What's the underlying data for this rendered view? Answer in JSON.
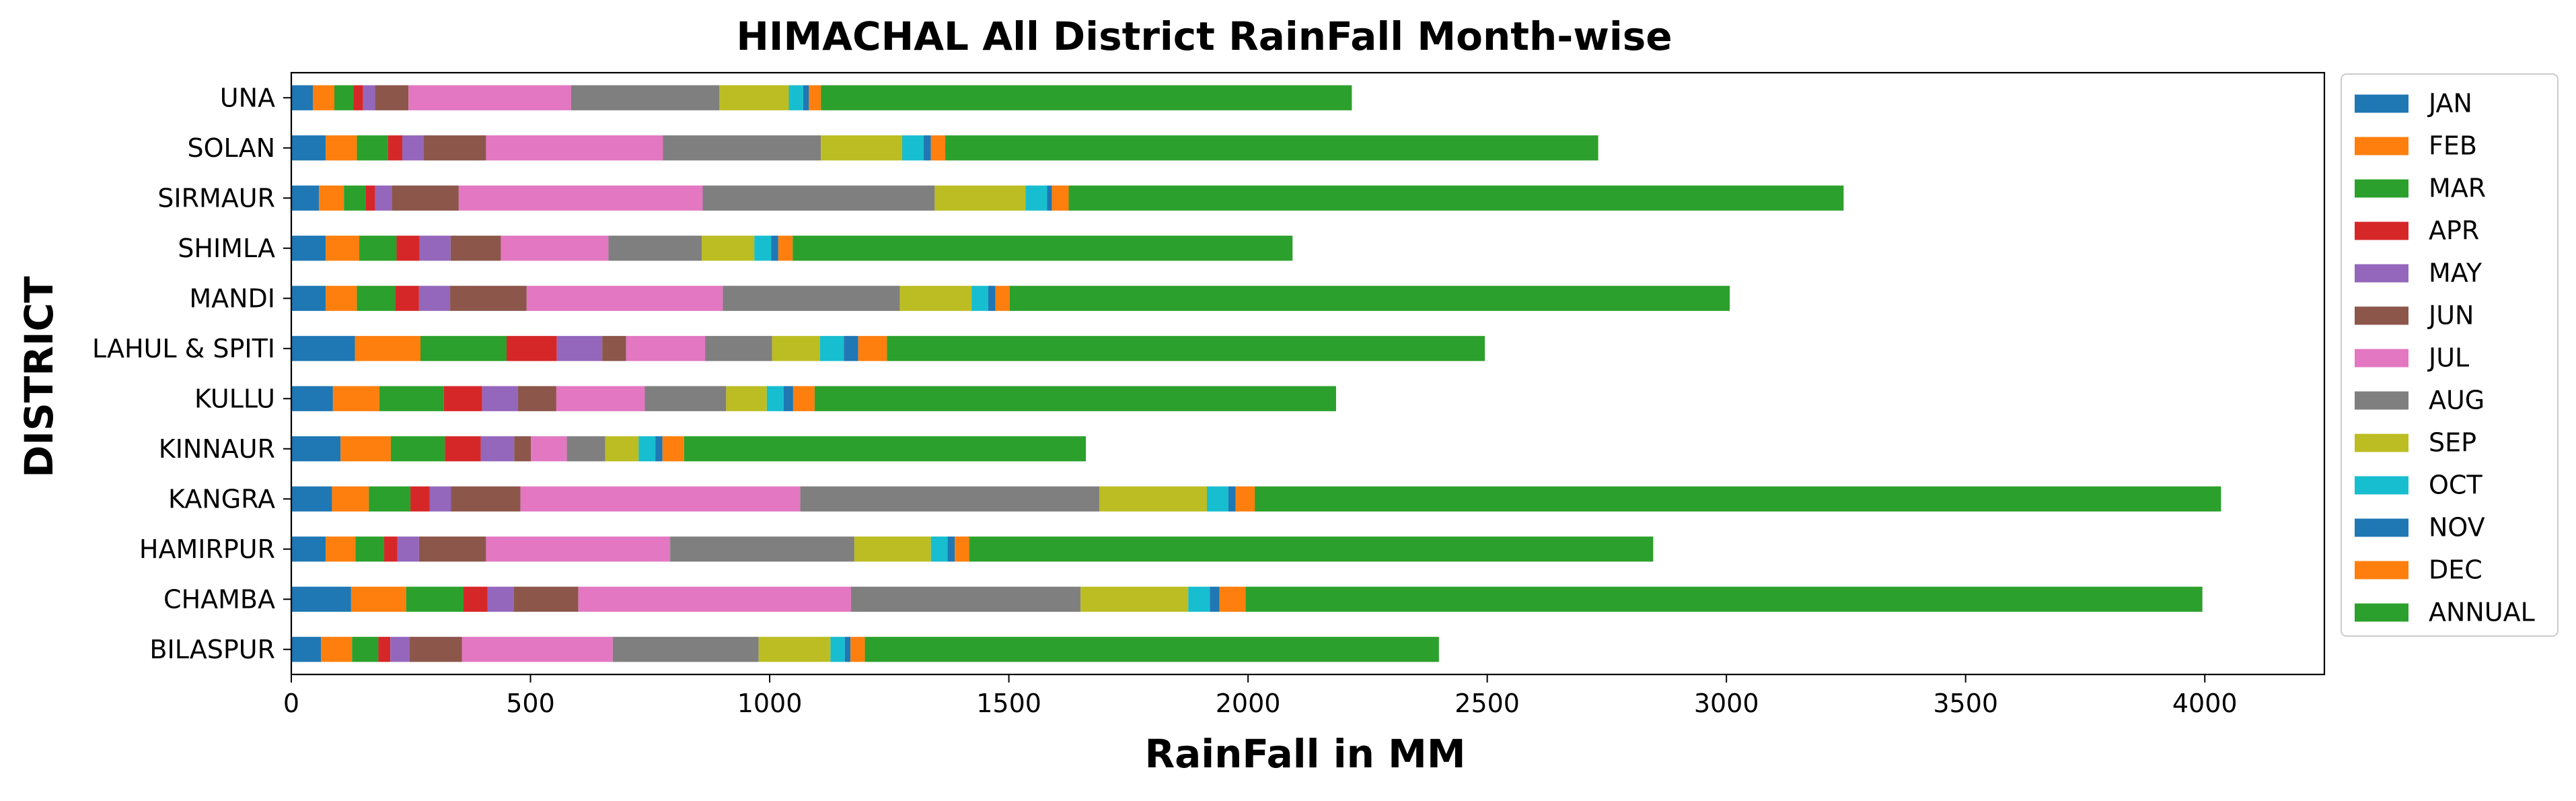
{
  "chart_data": {
    "type": "bar",
    "orientation": "horizontal",
    "stacked": true,
    "title": "HIMACHAL All District RainFall Month-wise",
    "xlabel": "RainFall in MM",
    "ylabel": "DISTRICT",
    "xlim": [
      0,
      4250
    ],
    "xticks": [
      0,
      500,
      1000,
      1500,
      2000,
      2500,
      3000,
      3500,
      4000
    ],
    "grid": false,
    "legend_position": "right",
    "categories": [
      "BILASPUR",
      "CHAMBA",
      "HAMIRPUR",
      "KANGRA",
      "KINNAUR",
      "KULLU",
      "LAHUL & SPITI",
      "MANDI",
      "SHIMLA",
      "SIRMAUR",
      "SOLAN",
      "UNA"
    ],
    "series": [
      {
        "name": "JAN",
        "color": "#1f77b4",
        "values": [
          62,
          125,
          72,
          85,
          103,
          87,
          133,
          72,
          72,
          58,
          72,
          45
        ]
      },
      {
        "name": "FEB",
        "color": "#ff7f0e",
        "values": [
          65,
          115,
          62,
          77,
          105,
          97,
          137,
          65,
          70,
          52,
          65,
          45
        ]
      },
      {
        "name": "MAR",
        "color": "#2ca02c",
        "values": [
          55,
          120,
          60,
          87,
          113,
          135,
          180,
          80,
          78,
          45,
          65,
          40
        ]
      },
      {
        "name": "APR",
        "color": "#d62728",
        "values": [
          25,
          50,
          28,
          40,
          75,
          80,
          105,
          50,
          48,
          20,
          30,
          20
        ]
      },
      {
        "name": "MAY",
        "color": "#9467bd",
        "values": [
          40,
          55,
          45,
          45,
          70,
          75,
          95,
          65,
          65,
          35,
          45,
          25
        ]
      },
      {
        "name": "JUN",
        "color": "#8c564b",
        "values": [
          110,
          135,
          140,
          145,
          35,
          80,
          50,
          160,
          105,
          140,
          130,
          70
        ]
      },
      {
        "name": "JUL",
        "color": "#e377c2",
        "values": [
          315,
          570,
          385,
          585,
          75,
          185,
          165,
          410,
          225,
          510,
          370,
          340
        ]
      },
      {
        "name": "AUG",
        "color": "#7f7f7f",
        "values": [
          305,
          480,
          385,
          625,
          80,
          170,
          140,
          370,
          195,
          485,
          330,
          310
        ]
      },
      {
        "name": "SEP",
        "color": "#bcbd22",
        "values": [
          150,
          225,
          160,
          225,
          70,
          85,
          100,
          150,
          110,
          190,
          170,
          145
        ]
      },
      {
        "name": "OCT",
        "color": "#17becf",
        "values": [
          30,
          45,
          35,
          45,
          35,
          35,
          50,
          35,
          35,
          45,
          45,
          30
        ]
      },
      {
        "name": "NOV",
        "color": "#1f77b4",
        "values": [
          12,
          20,
          15,
          15,
          15,
          20,
          30,
          15,
          15,
          10,
          15,
          12
        ]
      },
      {
        "name": "DEC",
        "color": "#ff7f0e",
        "values": [
          30,
          55,
          30,
          40,
          45,
          45,
          60,
          30,
          30,
          35,
          30,
          25
        ]
      },
      {
        "name": "ANNUAL",
        "color": "#2ca02c",
        "values": [
          1200,
          2000,
          1430,
          2020,
          840,
          1090,
          1250,
          1505,
          1045,
          1620,
          1365,
          1110
        ]
      }
    ]
  }
}
